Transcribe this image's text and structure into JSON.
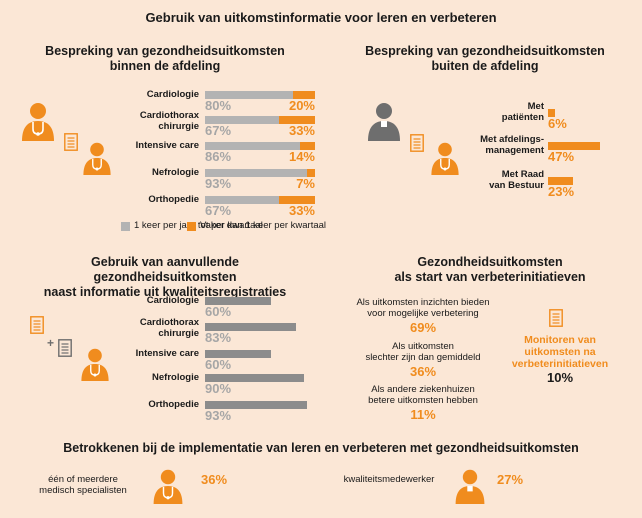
{
  "colors": {
    "orange": "#f08c1e",
    "grey_light": "#b3b3b3",
    "grey_dark": "#8c8c8c",
    "background": "#fbe7d6"
  },
  "title": "Gebruik van uitkomstinformatie voor leren en verbeteren",
  "s1": {
    "title_line1": "Bespreking van gezondheidsuitkomsten",
    "title_line2": "binnen de afdeling",
    "legend_grey": "1 keer per jaar tot per kwartaal",
    "legend_orange": "Vaker dan 1 keer per kwartaal"
  },
  "s2": {
    "title_line1": "Bespreking van gezondheidsuitkomsten",
    "title_line2": "buiten de afdeling"
  },
  "s3": {
    "title_line1": "Gebruik van aanvullende gezondheidsuitkomsten",
    "title_line2": "naast informatie uit kwaliteitsregistraties"
  },
  "s4": {
    "title_line1": "Gezondheidsuitkomsten",
    "title_line2": "als start van verbeterinitiatieven",
    "items": [
      {
        "line1": "Als uitkomsten inzichten bieden",
        "line2": "voor mogelijke verbetering",
        "value": "69%"
      },
      {
        "line1": "Als uitkomsten",
        "line2": "slechter zijn dan gemiddeld",
        "value": "36%"
      },
      {
        "line1": "Als andere ziekenhuizen",
        "line2": "betere uitkomsten hebben",
        "value": "11%"
      }
    ],
    "monitor_line1": "Monitoren van",
    "monitor_line2": "uitkomsten na",
    "monitor_line3": "verbeterinitiatieven",
    "monitor_value": "10%"
  },
  "s5": {
    "title": "Betrokkenen bij de implementatie van leren en verbeteren met gezondheidsuitkomsten",
    "left_line1": "één of meerdere",
    "left_line2": "medisch specialisten",
    "left_value": "36%",
    "right_label": "kwaliteitsmedewerker",
    "right_value": "27%"
  },
  "icons": [
    "doctor-icon",
    "person-icon",
    "document-icon",
    "plus-icon"
  ],
  "chart_data": [
    {
      "type": "bar",
      "orientation": "horizontal",
      "stacked": true,
      "categories": [
        "Cardiologie",
        "Cardiothorax chirurgie",
        "Intensive care",
        "Nefrologie",
        "Orthopedie"
      ],
      "category_lines": [
        [
          "Cardiologie"
        ],
        [
          "Cardiothorax",
          "chirurgie"
        ],
        [
          "Intensive care"
        ],
        [
          "Nefrologie"
        ],
        [
          "Orthopedie"
        ]
      ],
      "series": [
        {
          "name": "1 keer per jaar tot per kwartaal",
          "values": [
            80,
            67,
            86,
            93,
            67
          ],
          "labels": [
            "80%",
            "67%",
            "86%",
            "93%",
            "67%"
          ]
        },
        {
          "name": "Vaker dan 1 keer per kwartaal",
          "values": [
            20,
            33,
            14,
            7,
            33
          ],
          "labels": [
            "20%",
            "33%",
            "14%",
            "7%",
            "33%"
          ]
        }
      ],
      "xlim": [
        0,
        100
      ]
    },
    {
      "type": "bar",
      "orientation": "horizontal",
      "categories": [
        "Met patiënten",
        "Met afdelings-management",
        "Met Raad van Bestuur"
      ],
      "category_lines": [
        [
          "Met",
          "patiënten"
        ],
        [
          "Met afdelings-",
          "management"
        ],
        [
          "Met Raad",
          "van Bestuur"
        ]
      ],
      "values": [
        6,
        47,
        23
      ],
      "labels": [
        "6%",
        "47%",
        "23%"
      ],
      "xlim": [
        0,
        100
      ]
    },
    {
      "type": "bar",
      "orientation": "horizontal",
      "categories": [
        "Cardiologie",
        "Cardiothorax chirurgie",
        "Intensive care",
        "Nefrologie",
        "Orthopedie"
      ],
      "category_lines": [
        [
          "Cardiologie"
        ],
        [
          "Cardiothorax",
          "chirurgie"
        ],
        [
          "Intensive care"
        ],
        [
          "Nefrologie"
        ],
        [
          "Orthopedie"
        ]
      ],
      "values": [
        60,
        83,
        60,
        90,
        93
      ],
      "labels": [
        "60%",
        "83%",
        "60%",
        "90%",
        "93%"
      ],
      "xlim": [
        0,
        100
      ]
    }
  ]
}
